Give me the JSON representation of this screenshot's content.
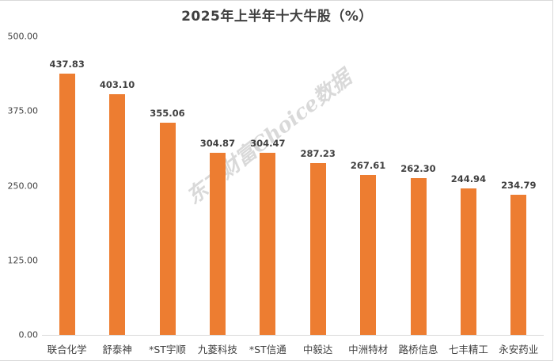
{
  "chart_data": {
    "type": "bar",
    "title": "2025年上半年十大牛股（%）",
    "xlabel": "",
    "ylabel": "",
    "ylim": [
      0,
      500
    ],
    "yticks": [
      "0.00",
      "125.00",
      "250.00",
      "375.00",
      "500.00"
    ],
    "grid": false,
    "legend": null,
    "categories": [
      "联合化学",
      "舒泰神",
      "*ST宇顺",
      "九菱科技",
      "*ST信通",
      "中毅达",
      "中洲特材",
      "路桥信息",
      "七丰精工",
      "永安药业"
    ],
    "values": [
      437.83,
      403.1,
      355.06,
      304.87,
      304.47,
      287.23,
      267.61,
      262.3,
      244.94,
      234.79
    ],
    "value_labels": [
      "437.83",
      "403.10",
      "355.06",
      "304.87",
      "304.47",
      "287.23",
      "267.61",
      "262.30",
      "244.94",
      "234.79"
    ],
    "bar_color": "#ed7d31",
    "watermark": "东方财富Choice数据"
  }
}
